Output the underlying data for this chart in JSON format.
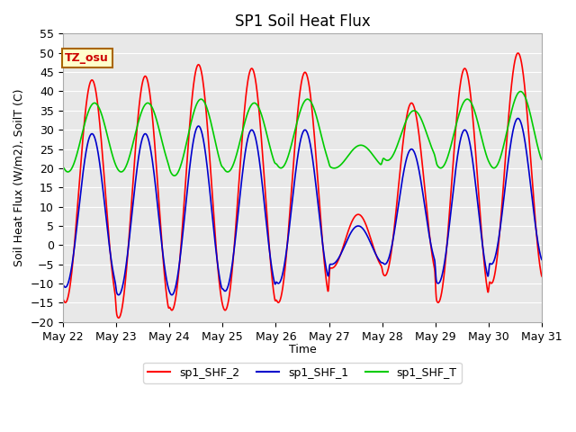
{
  "title": "SP1 Soil Heat Flux",
  "ylabel": "Soil Heat Flux (W/m2), SoilT (C)",
  "xlabel": "Time",
  "ylim": [
    -20,
    55
  ],
  "yticks": [
    -20,
    -15,
    -10,
    -5,
    0,
    5,
    10,
    15,
    20,
    25,
    30,
    35,
    40,
    45,
    50,
    55
  ],
  "xtick_labels": [
    "May 22",
    "May 23",
    "May 24",
    "May 25",
    "May 26",
    "May 27",
    "May 28",
    "May 29",
    "May 30",
    "May 31"
  ],
  "line_colors": {
    "sp1_SHF_2": "#ff0000",
    "sp1_SHF_1": "#0000cc",
    "sp1_SHF_T": "#00cc00"
  },
  "annotation_text": "TZ_osu",
  "annotation_bg": "#ffffcc",
  "annotation_border": "#aa6600",
  "annotation_text_color": "#cc0000",
  "bg_color": "#e8e8e8",
  "legend_labels": [
    "sp1_SHF_2",
    "sp1_SHF_1",
    "sp1_SHF_T"
  ]
}
